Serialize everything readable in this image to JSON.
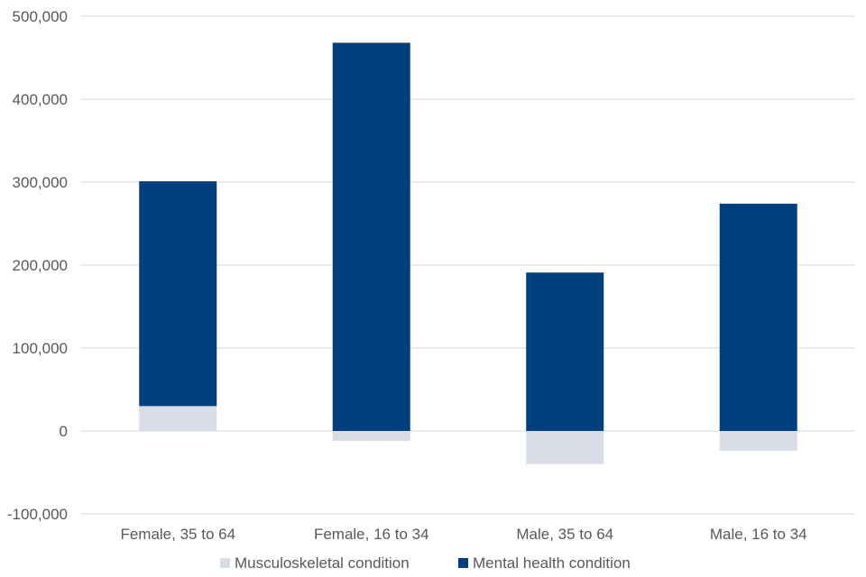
{
  "chart_data": {
    "type": "bar",
    "stacked": true,
    "categories": [
      "Female, 35 to 64",
      "Female, 16 to 34",
      "Male, 35 to 64",
      "Male, 16 to 34"
    ],
    "series": [
      {
        "name": "Musculoskeletal condition",
        "color": "#d9dde8",
        "values": [
          30000,
          -12000,
          -40000,
          -24000
        ]
      },
      {
        "name": "Mental health condition",
        "color": "#003f7d",
        "values": [
          271000,
          468000,
          191000,
          274000
        ]
      }
    ],
    "ylim": [
      -100000,
      500000
    ],
    "yticks": [
      {
        "value": 500000,
        "label": "500,000"
      },
      {
        "value": 400000,
        "label": "400,000"
      },
      {
        "value": 300000,
        "label": "300,000"
      },
      {
        "value": 200000,
        "label": "200,000"
      },
      {
        "value": 100000,
        "label": "100,000"
      },
      {
        "value": 0,
        "label": "0"
      },
      {
        "value": -100000,
        "label": "-100,000"
      }
    ],
    "grid": true,
    "legend_position": "bottom",
    "gridline_color": "#d9d9d9",
    "label_color": "#595959"
  }
}
